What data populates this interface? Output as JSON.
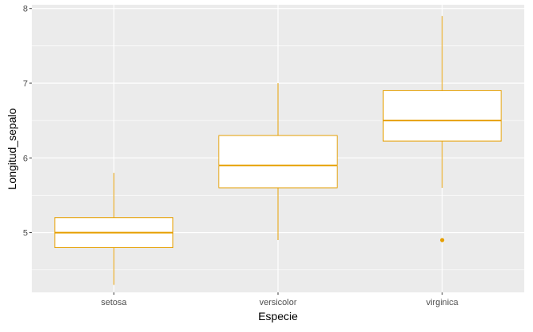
{
  "chart_data": {
    "type": "boxplot",
    "xlabel": "Especie",
    "ylabel": "Longitud_sepalo",
    "categories": [
      "setosa",
      "versicolor",
      "virginica"
    ],
    "ylim": [
      4.2,
      8.05
    ],
    "yticks": [
      5,
      6,
      7,
      8
    ],
    "grid": true,
    "legend": "none",
    "boxes": [
      {
        "category": "setosa",
        "whisker_low": 4.3,
        "q1": 4.8,
        "median": 5.0,
        "q3": 5.2,
        "whisker_high": 5.8,
        "outliers": []
      },
      {
        "category": "versicolor",
        "whisker_low": 4.9,
        "q1": 5.6,
        "median": 5.9,
        "q3": 6.3,
        "whisker_high": 7.0,
        "outliers": []
      },
      {
        "category": "virginica",
        "whisker_low": 5.6,
        "q1": 6.225,
        "median": 6.5,
        "q3": 6.9,
        "whisker_high": 7.9,
        "outliers": [
          4.9
        ]
      }
    ],
    "colors": {
      "box_line": "#E69F00",
      "box_fill": "#FFFFFF",
      "panel_background": "#EBEBEB",
      "grid": "#FFFFFF"
    }
  }
}
